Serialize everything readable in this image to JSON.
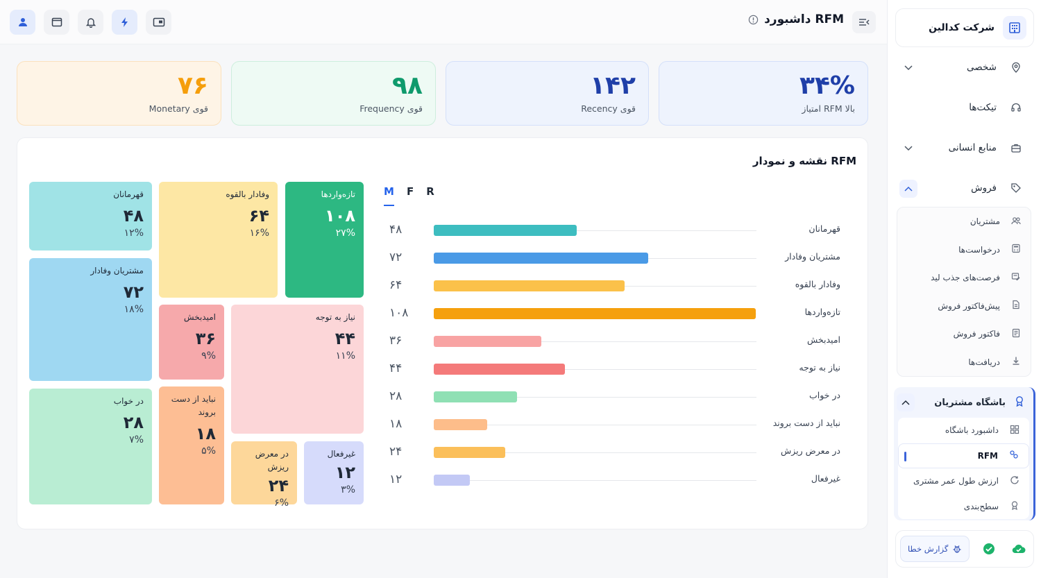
{
  "header": {
    "title": "داشبورد RFM"
  },
  "sidebar": {
    "company": "شرکت کدالین",
    "items": [
      {
        "label": "شخصی"
      },
      {
        "label": "تیکت‌ها"
      },
      {
        "label": "منابع انسانی"
      },
      {
        "label": "فروش"
      }
    ],
    "sales_sub": [
      {
        "label": "مشتریان"
      },
      {
        "label": "درخواست‌ها"
      },
      {
        "label": "فرصت‌های جذب لید"
      },
      {
        "label": "پیش‌فاکتور فروش"
      },
      {
        "label": "فاکتور فروش"
      },
      {
        "label": "دریافت‌ها"
      }
    ],
    "club": {
      "label": "باشگاه مشتریان",
      "items": [
        {
          "label": "داشبورد باشگاه"
        },
        {
          "label": "RFM"
        },
        {
          "label": "ارزش طول عمر مشتری"
        },
        {
          "label": "سطح‌بندی"
        }
      ]
    },
    "report_button": "گزارش خطا"
  },
  "kpis": [
    {
      "value": "۳۴%",
      "label": "امتیاز RFM بالا",
      "color": "#1f3fa8"
    },
    {
      "value": "۱۴۲",
      "label": "Recency قوی",
      "color": "#1f3fa8"
    },
    {
      "value": "۹۸",
      "label": "Frequency قوی",
      "color": "#0f9a6c"
    },
    {
      "value": "۷۶",
      "label": "Monetary قوی",
      "color": "#f59e0b"
    }
  ],
  "panel": {
    "title": "نقشه و نمودار RFM",
    "tabs": [
      "M",
      "F",
      "R"
    ],
    "active_tab": "M"
  },
  "chart_data": {
    "type": "bar",
    "orientation": "horizontal",
    "categories": [
      "قهرمانان",
      "مشتریان وفادار",
      "وفادار بالقوه",
      "تازه‌واردها",
      "امیدبخش",
      "نیاز به توجه",
      "در خواب",
      "نباید از دست بروند",
      "در معرض ریزش",
      "غیرفعال"
    ],
    "value_labels": [
      "۴۸",
      "۷۲",
      "۶۴",
      "۱۰۸",
      "۳۶",
      "۴۴",
      "۲۸",
      "۱۸",
      "۲۴",
      "۱۲"
    ],
    "values": [
      48,
      72,
      64,
      108,
      36,
      44,
      28,
      18,
      24,
      12
    ],
    "colors": [
      "#3dbdc0",
      "#4a9ae6",
      "#fbc14a",
      "#f5a00e",
      "#f8a3a3",
      "#f47a7a",
      "#8fe0b4",
      "#fdbd8a",
      "#fbbf5a",
      "#c3c9f5"
    ],
    "xlim": [
      0,
      108
    ]
  },
  "treemap": [
    {
      "name": "قهرمانان",
      "value": "۴۸",
      "pct": "۱۲%",
      "color": "#a0e3e6"
    },
    {
      "name": "وفادار بالقوه",
      "value": "۶۴",
      "pct": "۱۶%",
      "color": "#fde7a4"
    },
    {
      "name": "تازه‌واردها",
      "value": "۱۰۸",
      "pct": "۲۷%",
      "color": "#2db882"
    },
    {
      "name": "مشتریان وفادار",
      "value": "۷۲",
      "pct": "۱۸%",
      "color": "#9fd8f2"
    },
    {
      "name": "امیدبخش",
      "value": "۳۶",
      "pct": "۹%",
      "color": "#f6a9ab"
    },
    {
      "name": "نیاز به توجه",
      "value": "۴۴",
      "pct": "۱۱%",
      "color": "#fcd6d8"
    },
    {
      "name": "در خواب",
      "value": "۲۸",
      "pct": "۷%",
      "color": "#b9edd3"
    },
    {
      "name": "نباید از دست بروند",
      "value": "۱۸",
      "pct": "۵%",
      "color": "#fdbe94"
    },
    {
      "name": "در معرض ریزش",
      "value": "۲۴",
      "pct": "۶%",
      "color": "#fdd79a"
    },
    {
      "name": "غیرفعال",
      "value": "۱۲",
      "pct": "۳%",
      "color": "#d6dbfb"
    }
  ]
}
